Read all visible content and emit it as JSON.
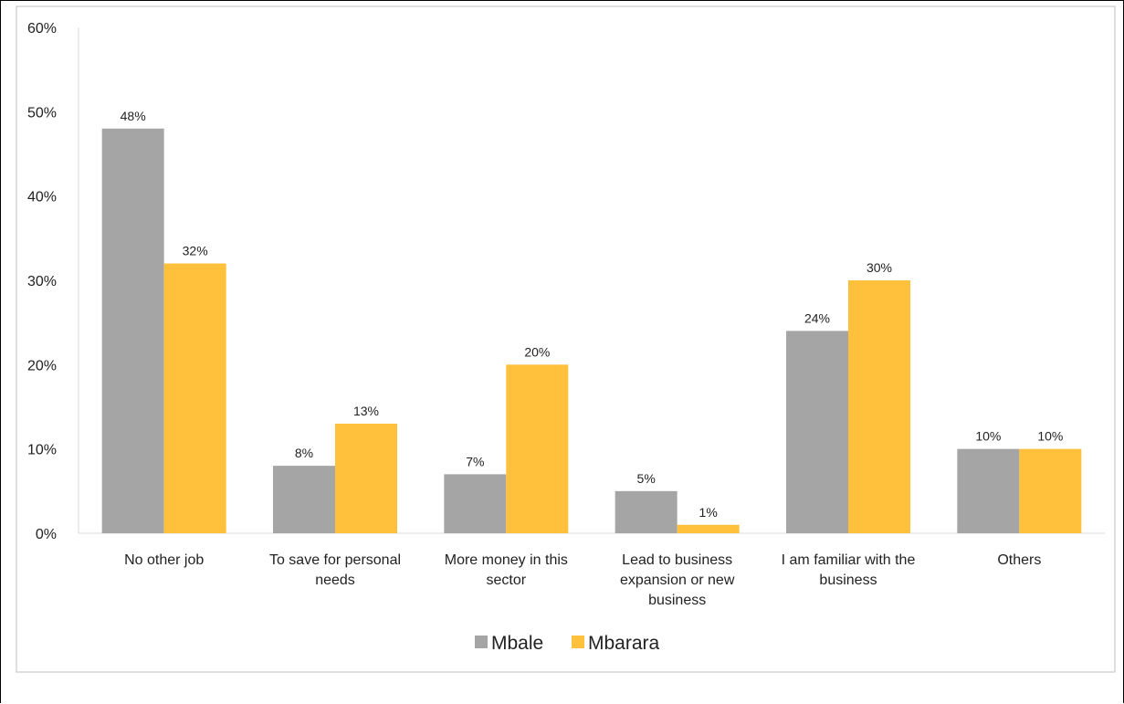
{
  "chart_data": {
    "type": "bar",
    "title": "",
    "xlabel": "",
    "ylabel": "",
    "ylim": [
      0,
      60
    ],
    "y_ticks": [
      "0%",
      "10%",
      "20%",
      "30%",
      "40%",
      "50%",
      "60%"
    ],
    "y_tick_values": [
      0,
      10,
      20,
      30,
      40,
      50,
      60
    ],
    "grid": false,
    "legend_position": "bottom",
    "categories": [
      [
        "No other job"
      ],
      [
        "To save for personal",
        "needs"
      ],
      [
        "More money in this",
        "sector"
      ],
      [
        "Lead to business",
        "expansion or new",
        "business"
      ],
      [
        "I am familiar with the",
        "business"
      ],
      [
        "Others"
      ]
    ],
    "series": [
      {
        "name": "Mbale",
        "color": "#a5a5a5",
        "values": [
          48,
          8,
          7,
          5,
          24,
          10
        ],
        "labels": [
          "48%",
          "8%",
          "7%",
          "5%",
          "24%",
          "10%"
        ]
      },
      {
        "name": "Mbarara",
        "color": "#ffc13b",
        "values": [
          32,
          13,
          20,
          1,
          30,
          10
        ],
        "labels": [
          "32%",
          "13%",
          "20%",
          "1%",
          "30%",
          "10%"
        ]
      }
    ]
  }
}
